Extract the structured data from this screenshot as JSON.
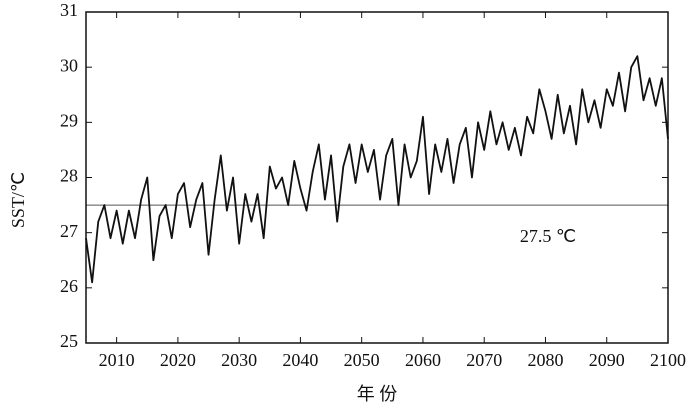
{
  "chart_data": {
    "type": "line",
    "y_label": "SST/℃",
    "x_label": "年 份",
    "x": [
      2005,
      2006,
      2007,
      2008,
      2009,
      2010,
      2011,
      2012,
      2013,
      2014,
      2015,
      2016,
      2017,
      2018,
      2019,
      2020,
      2021,
      2022,
      2023,
      2024,
      2025,
      2026,
      2027,
      2028,
      2029,
      2030,
      2031,
      2032,
      2033,
      2034,
      2035,
      2036,
      2037,
      2038,
      2039,
      2040,
      2041,
      2042,
      2043,
      2044,
      2045,
      2046,
      2047,
      2048,
      2049,
      2050,
      2051,
      2052,
      2053,
      2054,
      2055,
      2056,
      2057,
      2058,
      2059,
      2060,
      2061,
      2062,
      2063,
      2064,
      2065,
      2066,
      2067,
      2068,
      2069,
      2070,
      2071,
      2072,
      2073,
      2074,
      2075,
      2076,
      2077,
      2078,
      2079,
      2080,
      2081,
      2082,
      2083,
      2084,
      2085,
      2086,
      2087,
      2088,
      2089,
      2090,
      2091,
      2092,
      2093,
      2094,
      2095,
      2096,
      2097,
      2098,
      2099,
      2100
    ],
    "series": [
      {
        "color": "#111111",
        "values": [
          26.9,
          26.1,
          27.2,
          27.5,
          26.9,
          27.4,
          26.8,
          27.4,
          26.9,
          27.6,
          28.0,
          26.5,
          27.3,
          27.5,
          26.9,
          27.7,
          27.9,
          27.1,
          27.6,
          27.9,
          26.6,
          27.6,
          28.4,
          27.4,
          28.0,
          26.8,
          27.7,
          27.2,
          27.7,
          26.9,
          28.2,
          27.8,
          28.0,
          27.5,
          28.3,
          27.8,
          27.4,
          28.1,
          28.6,
          27.6,
          28.4,
          27.2,
          28.2,
          28.6,
          27.9,
          28.6,
          28.1,
          28.5,
          27.6,
          28.4,
          28.7,
          27.5,
          28.6,
          28.0,
          28.3,
          29.1,
          27.7,
          28.6,
          28.1,
          28.7,
          27.9,
          28.6,
          28.9,
          28.0,
          29.0,
          28.5,
          29.2,
          28.6,
          29.0,
          28.5,
          28.9,
          28.4,
          29.1,
          28.8,
          29.6,
          29.2,
          28.7,
          29.5,
          28.8,
          29.3,
          28.6,
          29.6,
          29.0,
          29.4,
          28.9,
          29.6,
          29.3,
          29.9,
          29.2,
          30.0,
          30.2,
          29.4,
          29.8,
          29.3,
          29.8,
          28.7
        ]
      }
    ],
    "reference_line": {
      "value": 27.5,
      "label": "27.5 ℃",
      "color": "#555555"
    },
    "xlim": [
      2005,
      2100
    ],
    "ylim": [
      25,
      31
    ],
    "xticks": [
      2010,
      2020,
      2030,
      2040,
      2050,
      2060,
      2070,
      2080,
      2090,
      2100
    ],
    "yticks": [
      25,
      26,
      27,
      28,
      29,
      30,
      31
    ]
  }
}
